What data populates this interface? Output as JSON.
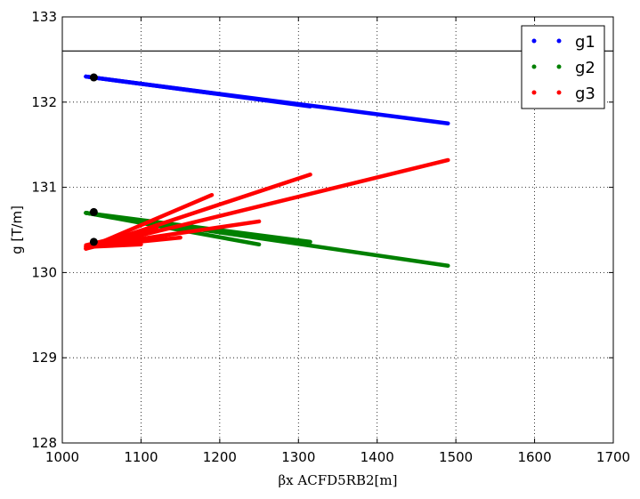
{
  "chart_data": {
    "type": "scatter",
    "xlabel": "βx ACFD5RB2[m]",
    "ylabel": "g [T/m]",
    "xlim": [
      1000,
      1700
    ],
    "ylim": [
      128,
      133
    ],
    "xticks": [
      1000,
      1100,
      1200,
      1300,
      1400,
      1500,
      1600,
      1700
    ],
    "yticks": [
      128,
      129,
      130,
      131,
      132,
      133
    ],
    "grid": true,
    "legend_position": "top-right",
    "hline": 132.6,
    "series": [
      {
        "name": "g1",
        "color": "#0000ff",
        "segments": [
          {
            "x": [
              1030,
              1490
            ],
            "y": [
              132.3,
              131.75
            ]
          },
          {
            "x": [
              1030,
              1315
            ],
            "y": [
              132.3,
              131.95
            ]
          },
          {
            "x": [
              1030,
              1195
            ],
            "y": [
              132.3,
              132.1
            ]
          }
        ]
      },
      {
        "name": "g2",
        "color": "#008000",
        "segments": [
          {
            "x": [
              1030,
              1490
            ],
            "y": [
              130.7,
              130.08
            ]
          },
          {
            "x": [
              1030,
              1315
            ],
            "y": [
              130.7,
              130.36
            ]
          },
          {
            "x": [
              1030,
              1250
            ],
            "y": [
              130.7,
              130.33
            ]
          },
          {
            "x": [
              1030,
              1195
            ],
            "y": [
              130.7,
              130.48
            ]
          },
          {
            "x": [
              1030,
              1150
            ],
            "y": [
              130.7,
              130.52
            ]
          }
        ]
      },
      {
        "name": "g3",
        "color": "#ff0000",
        "segments": [
          {
            "x": [
              1030,
              1490
            ],
            "y": [
              130.28,
              131.32
            ]
          },
          {
            "x": [
              1030,
              1315
            ],
            "y": [
              130.28,
              131.15
            ]
          },
          {
            "x": [
              1030,
              1190
            ],
            "y": [
              130.28,
              130.91
            ]
          },
          {
            "x": [
              1030,
              1250
            ],
            "y": [
              130.3,
              130.6
            ]
          },
          {
            "x": [
              1030,
              1150
            ],
            "y": [
              130.3,
              130.41
            ]
          },
          {
            "x": [
              1030,
              1100
            ],
            "y": [
              130.3,
              130.33
            ]
          },
          {
            "x": [
              1030,
              1120
            ],
            "y": [
              130.32,
              130.52
            ]
          }
        ]
      }
    ],
    "reference_points": [
      {
        "x": 1040,
        "y": 132.29
      },
      {
        "x": 1040,
        "y": 130.71
      },
      {
        "x": 1040,
        "y": 130.36
      }
    ]
  }
}
